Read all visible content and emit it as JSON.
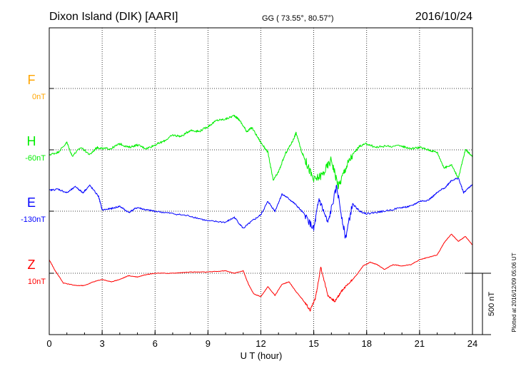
{
  "header": {
    "station": "Dixon Island (DIK)  [AARI]",
    "coords": "GG ( 73.55°,  80.57°)",
    "date": "2016/10/24"
  },
  "side_note": "Plotted at 2016/12/09 05:06 UT",
  "chart_data": {
    "type": "line",
    "xlabel": "U T (hour)",
    "xlim": [
      0,
      24
    ],
    "x_ticks": [
      "0",
      "3",
      "6",
      "9",
      "12",
      "15",
      "18",
      "21",
      "24"
    ],
    "scale_bar": {
      "label": "500 nT",
      "value": 500
    },
    "grid": true,
    "series": [
      {
        "name": "F",
        "baseline_label": "0nT",
        "color": "#ffa500",
        "points": []
      },
      {
        "name": "H",
        "baseline_label": "-60nT",
        "color": "#00ee00",
        "points": [
          [
            0.0,
            -40
          ],
          [
            0.5,
            -20
          ],
          [
            1.0,
            60
          ],
          [
            1.3,
            -50
          ],
          [
            1.8,
            20
          ],
          [
            2.3,
            -40
          ],
          [
            2.7,
            20
          ],
          [
            3.0,
            10
          ],
          [
            3.5,
            10
          ],
          [
            4.0,
            50
          ],
          [
            4.5,
            20
          ],
          [
            5.0,
            40
          ],
          [
            5.5,
            10
          ],
          [
            6.0,
            40
          ],
          [
            6.5,
            70
          ],
          [
            7.0,
            120
          ],
          [
            7.5,
            110
          ],
          [
            8.0,
            160
          ],
          [
            8.5,
            150
          ],
          [
            9.0,
            190
          ],
          [
            9.5,
            240
          ],
          [
            10.0,
            250
          ],
          [
            10.5,
            280
          ],
          [
            10.8,
            240
          ],
          [
            11.2,
            150
          ],
          [
            11.5,
            180
          ],
          [
            12.0,
            60
          ],
          [
            12.4,
            -20
          ],
          [
            12.7,
            -250
          ],
          [
            13.0,
            -180
          ],
          [
            13.4,
            -30
          ],
          [
            13.8,
            70
          ],
          [
            14.0,
            140
          ],
          [
            14.3,
            -10
          ],
          [
            14.6,
            -110
          ],
          [
            15.0,
            -250
          ],
          [
            15.5,
            -200
          ],
          [
            16.0,
            -80
          ],
          [
            16.4,
            -300
          ],
          [
            16.8,
            -150
          ],
          [
            17.2,
            -40
          ],
          [
            17.6,
            30
          ],
          [
            18.0,
            50
          ],
          [
            18.5,
            20
          ],
          [
            19.0,
            30
          ],
          [
            20.0,
            30
          ],
          [
            20.5,
            10
          ],
          [
            21.0,
            20
          ],
          [
            21.5,
            0
          ],
          [
            22.0,
            -20
          ],
          [
            22.4,
            -150
          ],
          [
            22.8,
            -120
          ],
          [
            23.2,
            -230
          ],
          [
            23.6,
            0
          ],
          [
            24.0,
            -50
          ]
        ]
      },
      {
        "name": "E",
        "baseline_label": "-130nT",
        "color": "#0000ff",
        "points": [
          [
            0.0,
            170
          ],
          [
            0.5,
            180
          ],
          [
            1.0,
            150
          ],
          [
            1.5,
            200
          ],
          [
            1.9,
            150
          ],
          [
            2.3,
            210
          ],
          [
            2.8,
            120
          ],
          [
            3.0,
            10
          ],
          [
            3.5,
            20
          ],
          [
            4.0,
            40
          ],
          [
            4.5,
            -10
          ],
          [
            5.0,
            30
          ],
          [
            5.5,
            10
          ],
          [
            6.0,
            0
          ],
          [
            7.0,
            -20
          ],
          [
            8.0,
            -40
          ],
          [
            9.0,
            -80
          ],
          [
            10.0,
            -90
          ],
          [
            10.5,
            -50
          ],
          [
            11.0,
            -140
          ],
          [
            11.5,
            -80
          ],
          [
            12.0,
            -30
          ],
          [
            12.4,
            80
          ],
          [
            12.8,
            0
          ],
          [
            13.2,
            140
          ],
          [
            13.6,
            100
          ],
          [
            14.0,
            50
          ],
          [
            14.5,
            -30
          ],
          [
            15.0,
            -150
          ],
          [
            15.3,
            100
          ],
          [
            15.8,
            -100
          ],
          [
            16.3,
            200
          ],
          [
            16.8,
            -220
          ],
          [
            17.2,
            60
          ],
          [
            17.6,
            0
          ],
          [
            18.0,
            -20
          ],
          [
            18.5,
            -10
          ],
          [
            19.0,
            0
          ],
          [
            20.0,
            30
          ],
          [
            20.5,
            40
          ],
          [
            21.0,
            80
          ],
          [
            21.5,
            90
          ],
          [
            22.0,
            150
          ],
          [
            22.5,
            200
          ],
          [
            22.8,
            250
          ],
          [
            23.2,
            270
          ],
          [
            23.5,
            150
          ],
          [
            24.0,
            220
          ]
        ]
      },
      {
        "name": "Z",
        "baseline_label": "10nT",
        "color": "#ff0000",
        "points": [
          [
            0.0,
            110
          ],
          [
            0.3,
            30
          ],
          [
            0.8,
            -80
          ],
          [
            1.5,
            -100
          ],
          [
            2.0,
            -100
          ],
          [
            2.5,
            -70
          ],
          [
            3.0,
            -50
          ],
          [
            3.5,
            -70
          ],
          [
            4.0,
            -50
          ],
          [
            4.5,
            -20
          ],
          [
            5.0,
            -30
          ],
          [
            5.5,
            -10
          ],
          [
            6.0,
            0
          ],
          [
            7.0,
            0
          ],
          [
            8.0,
            10
          ],
          [
            9.0,
            10
          ],
          [
            10.0,
            20
          ],
          [
            10.5,
            0
          ],
          [
            11.0,
            20
          ],
          [
            11.3,
            -90
          ],
          [
            11.6,
            -170
          ],
          [
            12.0,
            -190
          ],
          [
            12.4,
            -110
          ],
          [
            12.8,
            -180
          ],
          [
            13.2,
            -90
          ],
          [
            13.6,
            -70
          ],
          [
            14.0,
            -150
          ],
          [
            14.4,
            -220
          ],
          [
            14.8,
            -300
          ],
          [
            15.1,
            -200
          ],
          [
            15.4,
            50
          ],
          [
            15.8,
            -180
          ],
          [
            16.2,
            -230
          ],
          [
            16.6,
            -140
          ],
          [
            17.0,
            -80
          ],
          [
            17.4,
            -20
          ],
          [
            17.8,
            60
          ],
          [
            18.2,
            90
          ],
          [
            18.6,
            70
          ],
          [
            19.0,
            30
          ],
          [
            19.5,
            70
          ],
          [
            20.0,
            60
          ],
          [
            20.5,
            70
          ],
          [
            21.0,
            110
          ],
          [
            21.5,
            130
          ],
          [
            22.0,
            150
          ],
          [
            22.4,
            250
          ],
          [
            22.8,
            320
          ],
          [
            23.2,
            260
          ],
          [
            23.6,
            300
          ],
          [
            24.0,
            230
          ]
        ]
      }
    ]
  }
}
